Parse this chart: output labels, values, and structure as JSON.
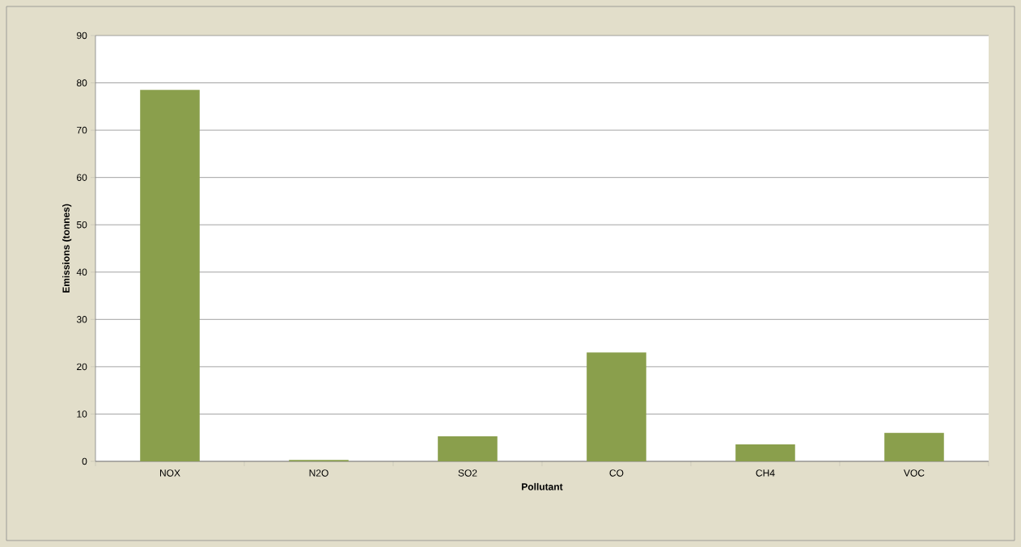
{
  "chart_data": {
    "type": "bar",
    "xlabel": "Pollutant",
    "ylabel": "Emissions (tonnes)",
    "categories": [
      "NOX",
      "N2O",
      "SO2",
      "CO",
      "CH4",
      "VOC"
    ],
    "values": [
      78.5,
      0.3,
      5.3,
      23.0,
      3.6,
      6.0
    ],
    "color": "#8a9f4c",
    "ylim": [
      0,
      90
    ],
    "yticks": [
      0,
      10,
      20,
      30,
      40,
      50,
      60,
      70,
      80,
      90
    ],
    "grid": "y"
  }
}
